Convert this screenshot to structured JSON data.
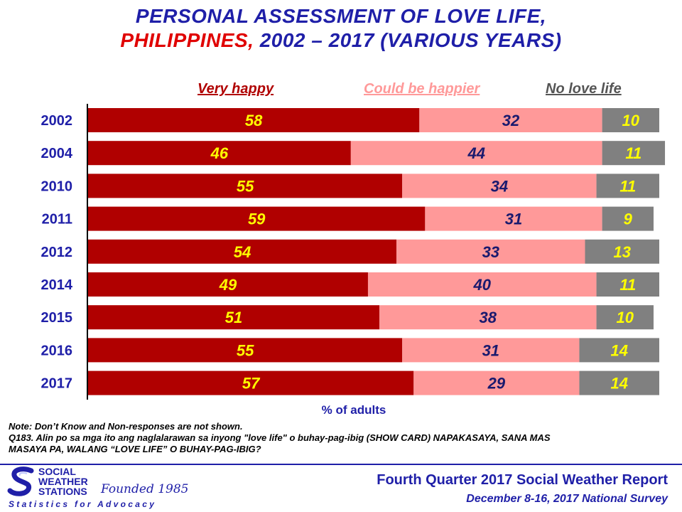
{
  "title": {
    "line1": "PERSONAL ASSESSMENT OF LOVE LIFE,",
    "line2_red": "PHILIPPINES,",
    "line2_rest": " 2002 – 2017 (VARIOUS YEARS)"
  },
  "chart_data": {
    "type": "bar",
    "orientation": "horizontal",
    "stacked": true,
    "categories": [
      "2002",
      "2004",
      "2010",
      "2011",
      "2012",
      "2014",
      "2015",
      "2016",
      "2017"
    ],
    "series": [
      {
        "name": "Very happy",
        "color": "#b00000",
        "label_color": "#ffff00",
        "values": [
          58,
          46,
          55,
          59,
          54,
          49,
          51,
          55,
          57
        ]
      },
      {
        "name": "Could be happier",
        "color": "#ff9999",
        "label_color": "#1a1a6e",
        "values": [
          32,
          44,
          34,
          31,
          33,
          40,
          38,
          31,
          29
        ]
      },
      {
        "name": "No love life",
        "color": "#808080",
        "label_color": "#ffff00",
        "values": [
          10,
          11,
          11,
          9,
          13,
          11,
          10,
          14,
          14
        ]
      }
    ],
    "xlabel": "% of adults",
    "xlim": [
      0,
      100
    ],
    "grid": false,
    "legend_position": "top"
  },
  "colors": {
    "title_blue": "#1f1fa8",
    "title_red": "#e00000",
    "category_label": "#1f1fa8"
  },
  "notes": {
    "line1": "Note: Don’t Know and Non-responses are not shown.",
    "line2": "Q183. Alin po sa mga ito ang naglalarawan sa inyong \"love life\" o buhay-pag-ibig (SHOW CARD) NAPAKASAYA, SANA MAS",
    "line3": "MASAYA PA, WALANG “LOVE LIFE” O BUHAY-PAG-IBIG?"
  },
  "footer": {
    "report": "Fourth Quarter 2017 Social Weather Report",
    "survey": "December 8-16, 2017 National Survey"
  },
  "logo": {
    "line1": "SOCIAL",
    "line2": "WEATHER",
    "line3": "STATIONS",
    "founded": "Founded 1985",
    "tagline": "Statistics for Advocacy",
    "icon": "sws-s-logo-icon"
  }
}
